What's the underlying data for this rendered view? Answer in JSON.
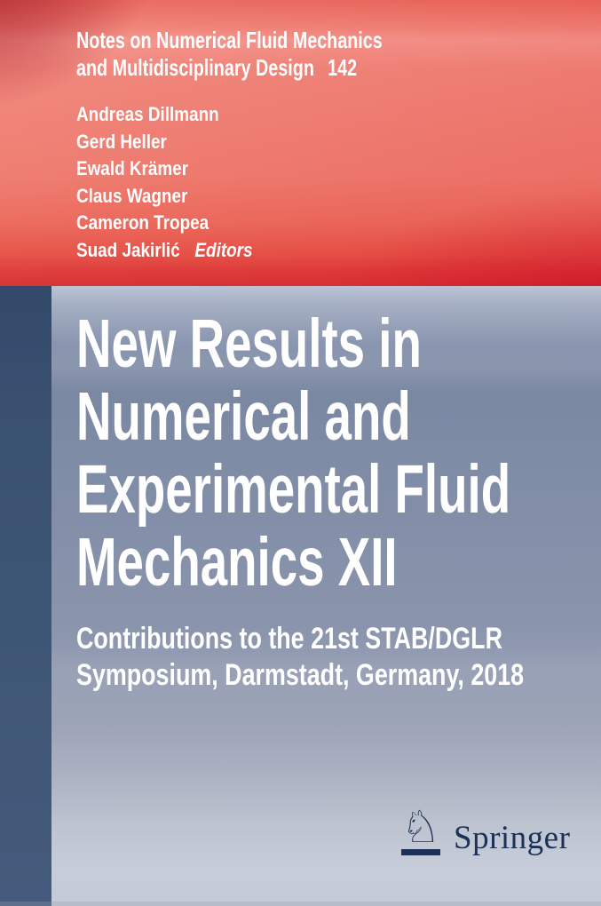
{
  "series": {
    "title_lines": [
      "Notes on Numerical Fluid Mechanics",
      "and Multidisciplinary Design"
    ],
    "volume": "142"
  },
  "editors": {
    "names": [
      "Andreas Dillmann",
      "Gerd Heller",
      "Ewald Krämer",
      "Claus Wagner",
      "Cameron Tropea",
      "Suad Jakirlić"
    ],
    "role_label": "Editors"
  },
  "title": {
    "lines": [
      "New Results in",
      "Numerical and",
      "Experimental Fluid",
      "Mechanics XII"
    ]
  },
  "subtitle": {
    "lines": [
      "Contributions to the 21st STAB/DGLR",
      "Symposium, Darmstadt, Germany, 2018"
    ]
  },
  "publisher": {
    "name": "Springer",
    "horse_icon": "springer-horse-icon",
    "horse_icon_glyph": "♘"
  },
  "colors": {
    "banner_red": "#ee776a",
    "banner_red_dark_corner": "#b01f2c",
    "banner_red_bottom": "#d52a2e",
    "field_slate_blue": "#8691aa",
    "field_light_blue": "#c7cdd9",
    "spine_dark_blue": "#3e5675",
    "logo_navy": "#1b3157",
    "text_white": "#ffffff"
  }
}
